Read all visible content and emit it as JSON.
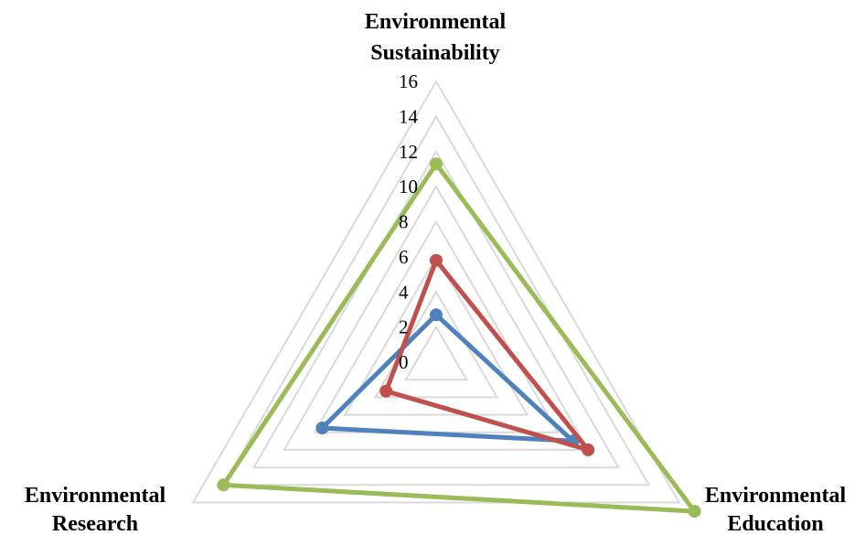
{
  "chart_data": {
    "type": "radar",
    "axes": [
      "Environmental Sustainability",
      "Environmental Education",
      "Environmental Research"
    ],
    "axis_title_lines": [
      [
        "Environmental",
        "Sustainability"
      ],
      [
        "Environmental",
        "Education"
      ],
      [
        "Environmental",
        "Research"
      ]
    ],
    "r_ticks": [
      0,
      2,
      4,
      6,
      8,
      10,
      12,
      14,
      16
    ],
    "rlim": [
      0,
      16
    ],
    "grid": true,
    "legend": "none",
    "series": [
      {
        "color": "#4f81bd",
        "values": [
          2.7,
          9.0,
          7.5
        ]
      },
      {
        "color": "#c0504d",
        "values": [
          5.8,
          10.0,
          3.3
        ]
      },
      {
        "color": "#9bbb59",
        "values": [
          11.3,
          17.0,
          14.0
        ]
      }
    ]
  }
}
